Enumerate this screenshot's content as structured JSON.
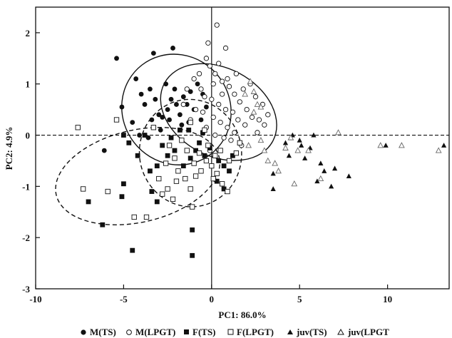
{
  "chart_data": {
    "type": "scatter",
    "xlabel": "PC1:  86.0%",
    "ylabel": "PC2:  4.9%",
    "xlim": [
      -10,
      13.5
    ],
    "ylim": [
      -3,
      2.5
    ],
    "x_ticks": [
      "-10",
      "-5",
      "0",
      "5",
      "10"
    ],
    "y_ticks": [
      "2",
      "1",
      "0",
      "-1",
      "-2",
      "-3"
    ],
    "x_tick_values": [
      -10,
      -5,
      0,
      5,
      10
    ],
    "y_tick_values": [
      2,
      1,
      0,
      -1,
      -2,
      -3
    ],
    "reference_lines": {
      "x": 0,
      "y": 0,
      "style": "dashed"
    },
    "ellipses": [
      {
        "center": [
          -2.0,
          0.5
        ],
        "rx": 6.1,
        "ry": 1.1,
        "angle_deg": -38,
        "style": "solid"
      },
      {
        "center": [
          0.4,
          0.45
        ],
        "rx": 5.0,
        "ry": 1.2,
        "angle_deg": -62,
        "style": "solid"
      },
      {
        "center": [
          -4.2,
          -0.8
        ],
        "rx": 9.5,
        "ry": 0.9,
        "angle_deg": -13,
        "style": "dashed"
      },
      {
        "center": [
          -1.2,
          -0.35
        ],
        "rx": 5.8,
        "ry": 1.05,
        "angle_deg": -10,
        "style": "dashed"
      }
    ],
    "series": [
      {
        "name": "M(TS)",
        "marker": "filled-circle",
        "points": [
          [
            -5.4,
            1.5
          ],
          [
            -3.3,
            1.6
          ],
          [
            -2.2,
            1.7
          ],
          [
            -4.3,
            1.1
          ],
          [
            -4.0,
            0.8
          ],
          [
            -3.8,
            0.6
          ],
          [
            -3.5,
            0.9
          ],
          [
            -3.2,
            0.7
          ],
          [
            -3.0,
            0.4
          ],
          [
            -2.8,
            0.35
          ],
          [
            -2.5,
            0.5
          ],
          [
            -2.3,
            0.7
          ],
          [
            -2.1,
            0.9
          ],
          [
            -2.0,
            0.6
          ],
          [
            -1.8,
            0.4
          ],
          [
            -1.6,
            0.75
          ],
          [
            -1.4,
            0.6
          ],
          [
            -1.2,
            0.85
          ],
          [
            -1.0,
            0.5
          ],
          [
            -0.8,
            1.0
          ],
          [
            -0.5,
            0.8
          ],
          [
            -0.3,
            0.55
          ],
          [
            -2.6,
            1.0
          ],
          [
            -3.4,
            0.3
          ],
          [
            -4.5,
            0.25
          ],
          [
            -5.1,
            0.55
          ],
          [
            -2.9,
            0.1
          ],
          [
            -1.7,
            0.2
          ],
          [
            -6.1,
            -0.3
          ],
          [
            -3.6,
            -0.05
          ],
          [
            -4.1,
            0.0
          ],
          [
            -2.4,
            0.3
          ],
          [
            -1.3,
            0.25
          ],
          [
            -0.6,
            0.3
          ]
        ]
      },
      {
        "name": "M(LPGT)",
        "marker": "open-circle",
        "points": [
          [
            0.3,
            2.15
          ],
          [
            -0.2,
            1.8
          ],
          [
            0.8,
            1.7
          ],
          [
            -0.1,
            1.35
          ],
          [
            0.2,
            1.2
          ],
          [
            0.6,
            1.05
          ],
          [
            1.0,
            0.95
          ],
          [
            1.3,
            0.8
          ],
          [
            1.6,
            0.65
          ],
          [
            2.0,
            0.5
          ],
          [
            2.3,
            0.35
          ],
          [
            2.7,
            0.3
          ],
          [
            3.0,
            0.2
          ],
          [
            -1.0,
            1.1
          ],
          [
            -0.6,
            0.9
          ],
          [
            -0.4,
            0.75
          ],
          [
            0.0,
            0.7
          ],
          [
            0.4,
            0.6
          ],
          [
            0.8,
            0.5
          ],
          [
            1.2,
            0.45
          ],
          [
            1.5,
            0.3
          ],
          [
            1.9,
            0.2
          ],
          [
            -0.9,
            0.5
          ],
          [
            -0.5,
            0.45
          ],
          [
            0.1,
            0.35
          ],
          [
            0.5,
            0.25
          ],
          [
            0.9,
            0.15
          ],
          [
            1.3,
            0.05
          ],
          [
            -0.3,
            0.15
          ],
          [
            0.2,
            0.0
          ],
          [
            0.7,
            -0.05
          ],
          [
            1.1,
            -0.1
          ],
          [
            1.7,
            -0.2
          ],
          [
            -1.2,
            0.3
          ],
          [
            2.5,
            0.75
          ],
          [
            2.9,
            0.6
          ],
          [
            3.2,
            0.4
          ],
          [
            0.1,
            1.0
          ],
          [
            -0.3,
            1.5
          ],
          [
            0.4,
            1.4
          ],
          [
            1.8,
            0.9
          ],
          [
            2.2,
            1.0
          ],
          [
            -1.4,
            0.9
          ],
          [
            0.9,
            1.1
          ],
          [
            1.4,
            1.2
          ],
          [
            -0.7,
            1.2
          ],
          [
            0.6,
            0.8
          ],
          [
            2.6,
            0.05
          ],
          [
            -1.6,
            0.6
          ],
          [
            -0.1,
            -0.3
          ]
        ]
      },
      {
        "name": "F(TS)",
        "marker": "filled-square",
        "points": [
          [
            -6.2,
            -1.75
          ],
          [
            -4.5,
            -2.25
          ],
          [
            -1.1,
            -2.35
          ],
          [
            -1.1,
            -1.85
          ],
          [
            -7.0,
            -1.3
          ],
          [
            -5.1,
            -1.2
          ],
          [
            -5.0,
            -0.95
          ],
          [
            -3.1,
            -1.3
          ],
          [
            -3.1,
            -0.6
          ],
          [
            -3.5,
            -0.7
          ],
          [
            -3.4,
            -1.1
          ],
          [
            -3.8,
            0.0
          ],
          [
            -5.0,
            0.0
          ],
          [
            -4.2,
            -0.4
          ],
          [
            -2.8,
            -0.2
          ],
          [
            -2.5,
            -0.4
          ],
          [
            -2.1,
            -0.3
          ],
          [
            -1.6,
            -0.6
          ],
          [
            -1.2,
            -0.45
          ],
          [
            -0.9,
            -0.3
          ],
          [
            -0.7,
            -0.15
          ],
          [
            -0.4,
            -0.4
          ],
          [
            -0.1,
            -0.25
          ],
          [
            0.4,
            -0.5
          ],
          [
            0.7,
            -0.6
          ],
          [
            1.0,
            -0.7
          ],
          [
            0.3,
            -0.9
          ],
          [
            0.7,
            -1.05
          ],
          [
            -1.3,
            0.1
          ],
          [
            -2.3,
            -0.05
          ],
          [
            -1.8,
            0.1
          ],
          [
            -0.5,
            0.05
          ],
          [
            1.2,
            -0.4
          ],
          [
            -4.7,
            -0.15
          ]
        ]
      },
      {
        "name": "F(LPGT)",
        "marker": "open-square",
        "points": [
          [
            -7.6,
            0.15
          ],
          [
            -7.3,
            -1.05
          ],
          [
            -5.9,
            -1.1
          ],
          [
            -4.4,
            -1.6
          ],
          [
            -3.7,
            -1.6
          ],
          [
            -5.4,
            0.3
          ],
          [
            -2.8,
            -1.15
          ],
          [
            -2.5,
            -1.05
          ],
          [
            -2.0,
            -0.9
          ],
          [
            -1.5,
            -0.85
          ],
          [
            -1.1,
            -1.4
          ],
          [
            -1.2,
            -1.05
          ],
          [
            -0.9,
            -0.8
          ],
          [
            -0.6,
            -0.7
          ],
          [
            -0.3,
            -0.5
          ],
          [
            0.0,
            -0.6
          ],
          [
            0.3,
            -0.75
          ],
          [
            0.6,
            -0.95
          ],
          [
            0.9,
            -1.1
          ],
          [
            -2.6,
            -0.55
          ],
          [
            -2.1,
            -0.45
          ],
          [
            -1.9,
            -0.7
          ],
          [
            -1.4,
            -0.3
          ],
          [
            -1.0,
            -0.55
          ],
          [
            -0.7,
            -0.35
          ],
          [
            -0.2,
            -0.2
          ],
          [
            0.2,
            -0.4
          ],
          [
            0.5,
            -0.3
          ],
          [
            1.0,
            -0.5
          ],
          [
            1.4,
            -0.35
          ],
          [
            -3.0,
            -0.85
          ],
          [
            -2.4,
            -0.2
          ],
          [
            -1.7,
            -0.1
          ],
          [
            0.1,
            -0.85
          ],
          [
            -1.2,
            0.25
          ],
          [
            -0.4,
            0.1
          ],
          [
            1.6,
            -0.15
          ],
          [
            -3.3,
            0.15
          ],
          [
            -2.2,
            -1.25
          ]
        ]
      },
      {
        "name": "juv(TS)",
        "marker": "filled-triangle",
        "points": [
          [
            4.6,
            0.0
          ],
          [
            5.0,
            -0.1
          ],
          [
            5.1,
            -0.2
          ],
          [
            5.8,
            0.0
          ],
          [
            6.2,
            -0.55
          ],
          [
            6.4,
            -0.7
          ],
          [
            6.0,
            -0.9
          ],
          [
            7.0,
            -0.65
          ],
          [
            7.8,
            -0.8
          ],
          [
            6.8,
            -1.0
          ],
          [
            3.5,
            -0.75
          ],
          [
            3.5,
            -1.05
          ],
          [
            4.4,
            -0.4
          ],
          [
            5.3,
            -0.45
          ],
          [
            9.9,
            -0.2
          ],
          [
            13.2,
            -0.2
          ],
          [
            5.6,
            -0.25
          ],
          [
            4.2,
            -0.15
          ]
        ]
      },
      {
        "name": "juv(LPGT",
        "marker": "open-triangle",
        "points": [
          [
            2.2,
            1.05
          ],
          [
            2.4,
            0.85
          ],
          [
            2.6,
            0.6
          ],
          [
            2.4,
            0.45
          ],
          [
            2.8,
            0.55
          ],
          [
            3.0,
            -0.3
          ],
          [
            3.2,
            -0.5
          ],
          [
            2.8,
            -0.1
          ],
          [
            3.6,
            -0.55
          ],
          [
            4.2,
            -0.25
          ],
          [
            4.7,
            -0.95
          ],
          [
            4.9,
            -0.3
          ],
          [
            5.5,
            -0.3
          ],
          [
            6.2,
            -0.85
          ],
          [
            7.2,
            0.05
          ],
          [
            9.6,
            -0.2
          ],
          [
            10.8,
            -0.2
          ],
          [
            12.9,
            -0.3
          ],
          [
            1.9,
            0.8
          ],
          [
            2.1,
            -0.2
          ],
          [
            3.8,
            -0.7
          ],
          [
            4.5,
            -0.05
          ]
        ]
      }
    ],
    "legend": {
      "placement": "bottom",
      "entries": [
        {
          "marker": "filled-circle",
          "label": "M(TS)"
        },
        {
          "marker": "open-circle",
          "label": "M(LPGT)"
        },
        {
          "marker": "filled-square",
          "label": "F(TS)"
        },
        {
          "marker": "open-square",
          "label": "F(LPGT)"
        },
        {
          "marker": "filled-triangle",
          "label": "juv(TS)"
        },
        {
          "marker": "open-triangle",
          "label": "juv(LPGT"
        }
      ]
    },
    "colors": {
      "marker": "#111111",
      "axis": "#111111",
      "background": "#ffffff"
    }
  }
}
